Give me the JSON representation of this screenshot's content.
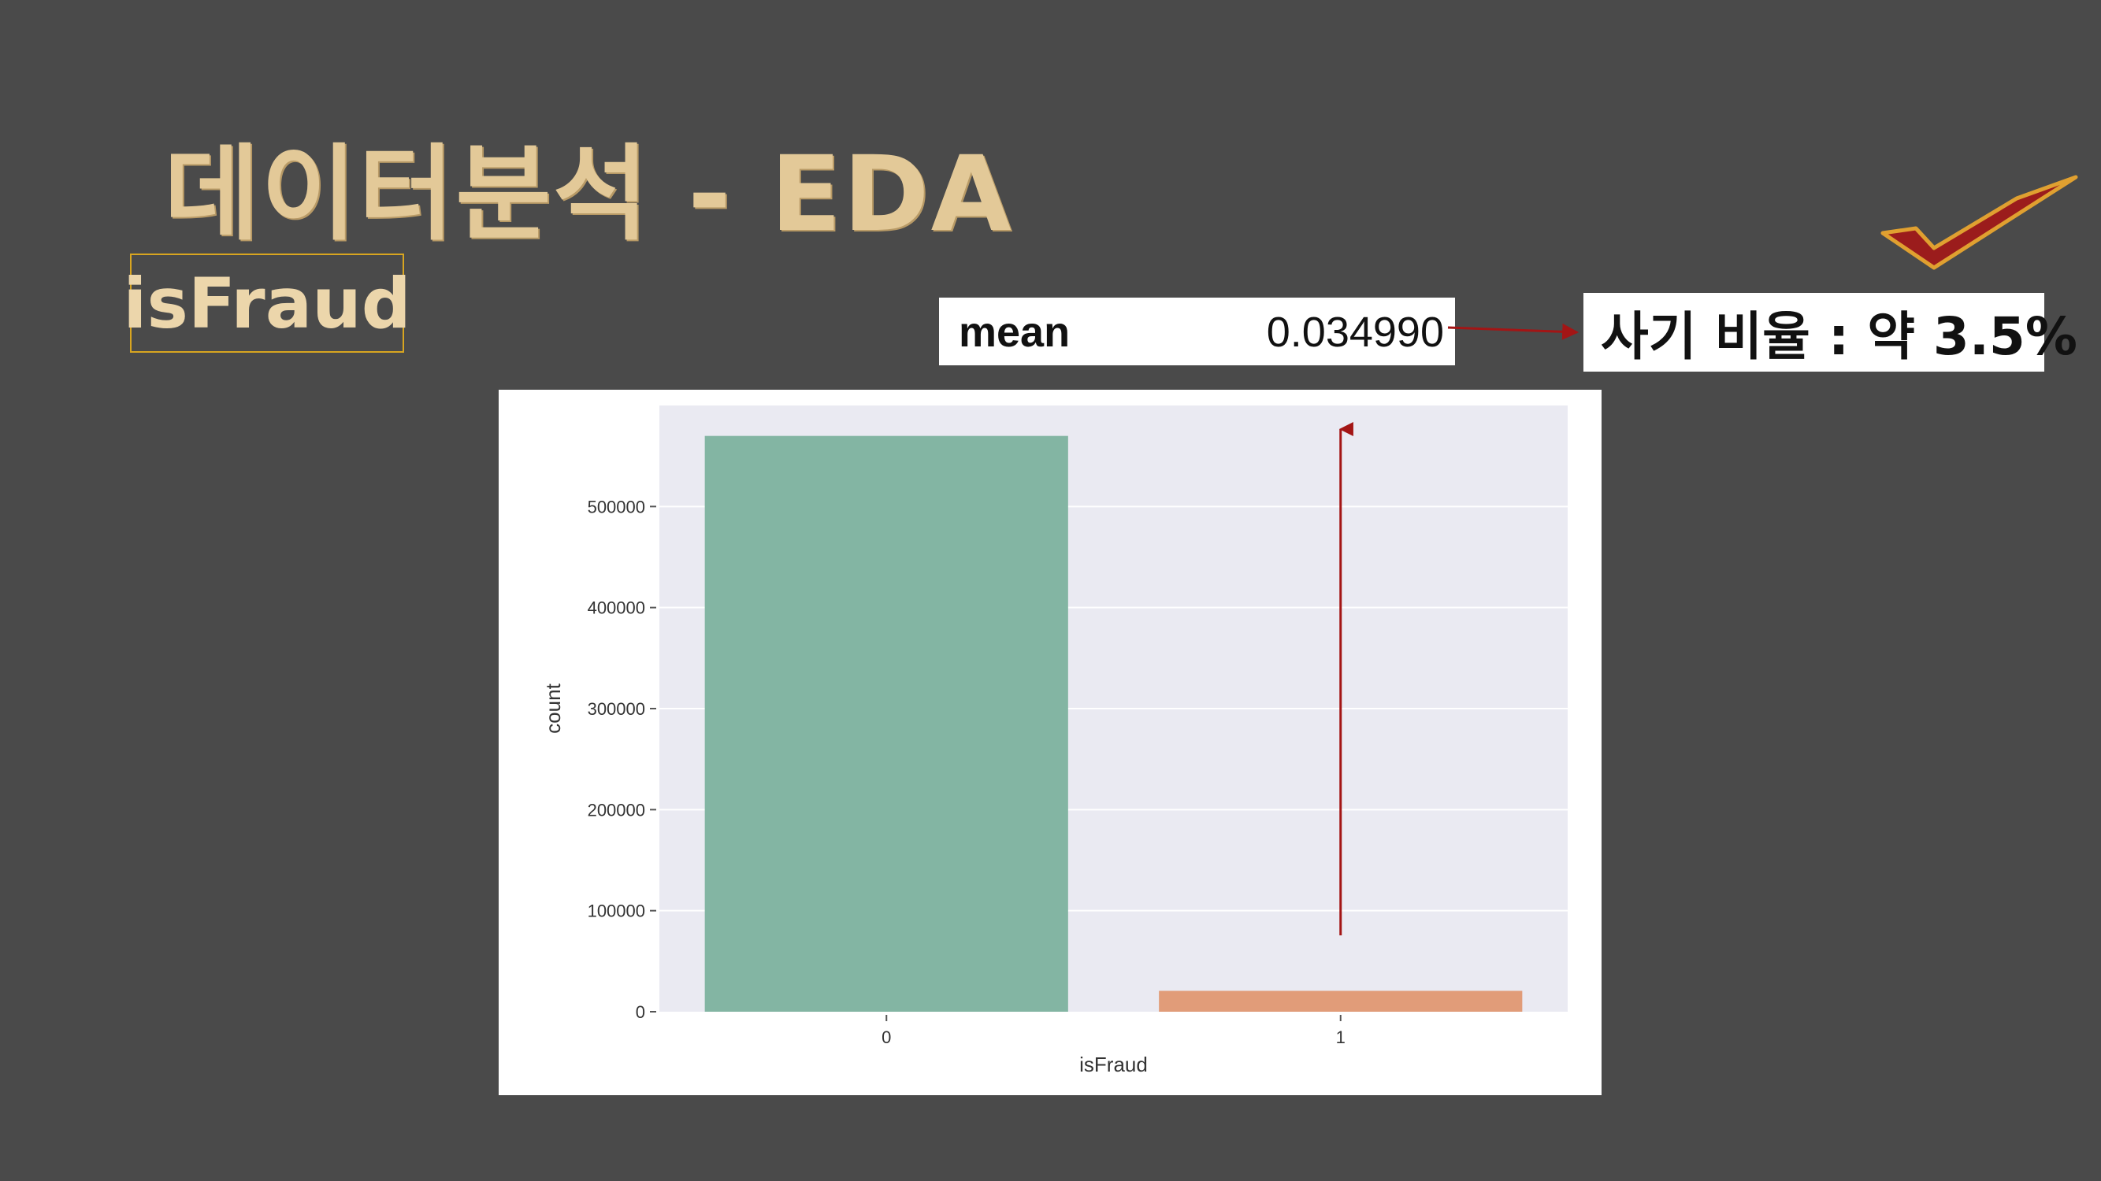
{
  "slide": {
    "title": "데이터분석 - EDA",
    "variable": "isFraud"
  },
  "stats": {
    "mean_label": "mean",
    "mean_value": "0.034990",
    "ratio_text": "사기 비율 : 약 3.5%"
  },
  "colors": {
    "background": "#4a4a4a",
    "title": "#e3c998",
    "box_border": "#d8a520",
    "bar_0": "#83b5a3",
    "bar_1": "#e19c79",
    "plot_bg": "#eaeaf2",
    "arrow": "#a31515",
    "check_fill": "#9b1c1c",
    "check_outline": "#e0a030"
  },
  "icons": [
    "check-mark-icon"
  ],
  "chart_data": {
    "type": "bar",
    "categories": [
      "0",
      "1"
    ],
    "values": [
      569877,
      20663
    ],
    "xlabel": "isFraud",
    "ylabel": "count",
    "ylim": [
      0,
      600000
    ],
    "yticks": [
      0,
      100000,
      200000,
      300000,
      400000,
      500000
    ],
    "ytick_labels": [
      "0",
      "100000",
      "200000",
      "300000",
      "400000",
      "500000"
    ],
    "grid": true,
    "legend": "none"
  }
}
